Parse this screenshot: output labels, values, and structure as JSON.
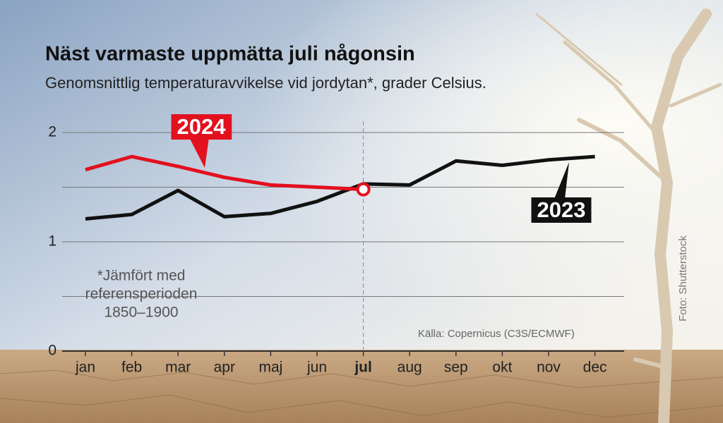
{
  "chart_data": {
    "type": "line",
    "title": "Näst varmaste uppmätta juli någonsin",
    "subtitle": "Genomsnittlig temperaturavvikelse vid jordytan*, grader Celsius.",
    "categories": [
      "jan",
      "feb",
      "mar",
      "apr",
      "maj",
      "jun",
      "jul",
      "aug",
      "sep",
      "okt",
      "nov",
      "dec"
    ],
    "series": [
      {
        "name": "2024",
        "color": "#e3101e",
        "values": [
          1.66,
          1.78,
          1.69,
          1.59,
          1.52,
          1.5,
          1.48,
          null,
          null,
          null,
          null,
          null
        ]
      },
      {
        "name": "2023",
        "color": "#111111",
        "values": [
          1.21,
          1.25,
          1.47,
          1.23,
          1.26,
          1.37,
          1.53,
          1.52,
          1.74,
          1.7,
          1.75,
          1.78
        ]
      }
    ],
    "ylim": [
      0,
      2
    ],
    "yticks": [
      0,
      1,
      2
    ],
    "minor_yticks": [
      0.5,
      1.5
    ],
    "grid": true,
    "note": [
      "*Jämfört med",
      "referensperioden",
      "1850–1900"
    ],
    "source": "Källa: Copernicus (C3S/ECMWF)",
    "credit": "Foto: Shutterstock"
  }
}
